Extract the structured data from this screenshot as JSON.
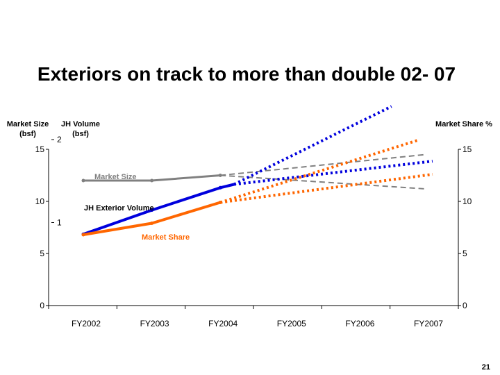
{
  "slide": {
    "title": "Exteriors on track to more than double 02- 07",
    "page_number": "21"
  },
  "chart_data": {
    "type": "line",
    "title": "Exteriors on track to more than double 02- 07",
    "categories": [
      "FY2002",
      "FY2003",
      "FY2004",
      "FY2005",
      "FY2006",
      "FY2007"
    ],
    "axes": {
      "left_outer": {
        "label_line1": "Market Size",
        "label_line2": "(bsf)",
        "ticks": [
          "0",
          "5",
          "10",
          "15"
        ],
        "range": [
          0,
          15
        ]
      },
      "left_inner": {
        "label_line1": "JH Volume",
        "label_line2": "(bsf)",
        "ticks": [
          "1",
          "2"
        ],
        "range": [
          0,
          2
        ]
      },
      "right": {
        "label": "Market Share %",
        "ticks": [
          "0",
          "5",
          "10",
          "15"
        ],
        "range": [
          0,
          15
        ]
      }
    },
    "grid": false,
    "series": [
      {
        "name": "Market Size",
        "color": "#808080",
        "axis": "left_outer",
        "actual": {
          "x": [
            0,
            1,
            2
          ],
          "y": [
            12.0,
            12.0,
            12.5
          ]
        },
        "forecast_high": {
          "x": [
            2,
            5
          ],
          "y": [
            12.5,
            14.5
          ]
        },
        "forecast_low": {
          "x": [
            2,
            5
          ],
          "y": [
            12.5,
            11.2
          ]
        }
      },
      {
        "name": "JH Exterior Volume",
        "color": "#0000dd",
        "label_color": "#000000",
        "axis": "left_inner",
        "actual": {
          "x": [
            0,
            1,
            2,
            2.2
          ],
          "y": [
            0.86,
            1.15,
            1.42,
            1.46
          ]
        },
        "forecast_high": {
          "x": [
            2.2,
            4.5
          ],
          "y": [
            1.46,
            2.4
          ]
        },
        "forecast_low": {
          "x": [
            2.2,
            5.1
          ],
          "y": [
            1.46,
            1.74
          ]
        }
      },
      {
        "name": "Market Share",
        "color": "#ff6600",
        "axis": "right",
        "actual": {
          "x": [
            0,
            1,
            2
          ],
          "y": [
            6.8,
            7.9,
            9.9
          ]
        },
        "forecast_high": {
          "x": [
            2,
            4.9
          ],
          "y": [
            9.9,
            15.9
          ]
        },
        "forecast_low": {
          "x": [
            2,
            5.1
          ],
          "y": [
            9.9,
            12.6
          ]
        }
      }
    ]
  }
}
